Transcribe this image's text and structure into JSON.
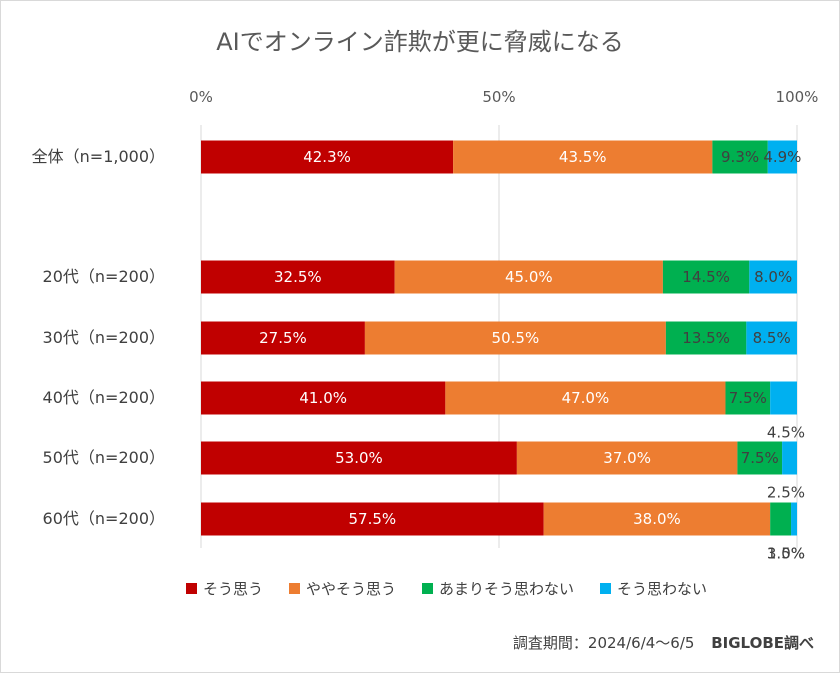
{
  "chart_data": {
    "type": "bar",
    "orientation": "horizontal",
    "stacked": "percent",
    "title": "AIでオンライン詐欺が更に脅威になる",
    "xlim": [
      0,
      100
    ],
    "x_ticks": [
      "0%",
      "50%",
      "100%"
    ],
    "grid": true,
    "legend_position": "bottom",
    "categories": [
      "全体（n=1,000）",
      "20代（n=200）",
      "30代（n=200）",
      "40代（n=200）",
      "50代（n=200）",
      "60代（n=200）"
    ],
    "series": [
      {
        "name": "そう思う",
        "color": "#c00000",
        "values": [
          42.3,
          32.5,
          27.5,
          41.0,
          53.0,
          57.5
        ],
        "labels": [
          "42.3%",
          "32.5%",
          "27.5%",
          "41.0%",
          "53.0%",
          "57.5%"
        ]
      },
      {
        "name": "ややそう思う",
        "color": "#ed7d31",
        "values": [
          43.5,
          45.0,
          50.5,
          47.0,
          37.0,
          38.0
        ],
        "labels": [
          "43.5%",
          "45.0%",
          "50.5%",
          "47.0%",
          "37.0%",
          "38.0%"
        ]
      },
      {
        "name": "あまりそう思わない",
        "color": "#00b050",
        "values": [
          9.3,
          14.5,
          13.5,
          7.5,
          7.5,
          3.5
        ],
        "labels": [
          "9.3%",
          "14.5%",
          "13.5%",
          "7.5%",
          "7.5%",
          "3.5%"
        ]
      },
      {
        "name": "そう思わない",
        "color": "#00b0f0",
        "values": [
          4.9,
          8.0,
          8.5,
          4.5,
          2.5,
          1.0
        ],
        "labels": [
          "4.9%",
          "8.0%",
          "8.5%",
          "4.5%",
          "2.5%",
          "1.0%"
        ]
      }
    ]
  },
  "footer": {
    "source": "調査期間：2024/6/4～6/5",
    "brand": "BIGLOBE調べ"
  }
}
